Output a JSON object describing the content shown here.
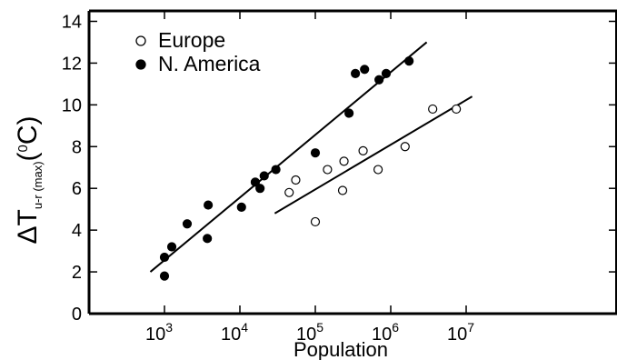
{
  "chart_data": {
    "type": "scatter",
    "xlabel": "Population",
    "ylabel": {
      "delta": "Δ",
      "T": "T",
      "subscript": "u-r (max)",
      "open_paren": "(",
      "unit_sup": "0",
      "unit": "C)"
    },
    "x_scale": "log",
    "xlim": [
      100,
      1000000000
    ],
    "ylim": [
      0,
      14.5
    ],
    "x_ticks": [
      {
        "value": 1000,
        "base": "10",
        "exp": "3"
      },
      {
        "value": 10000,
        "base": "10",
        "exp": "4"
      },
      {
        "value": 100000,
        "base": "10",
        "exp": "5"
      },
      {
        "value": 1000000,
        "base": "10",
        "exp": "6"
      },
      {
        "value": 10000000,
        "base": "10",
        "exp": "7"
      }
    ],
    "y_ticks": [
      "0",
      "2",
      "4",
      "6",
      "8",
      "10",
      "12",
      "14"
    ],
    "legend": {
      "placement": "top-left"
    },
    "grid": false,
    "series": [
      {
        "name": "N. America",
        "marker": "filled-circle",
        "points": [
          {
            "x": 1000,
            "y": 1.8
          },
          {
            "x": 1000,
            "y": 2.7
          },
          {
            "x": 1250,
            "y": 3.2
          },
          {
            "x": 2000,
            "y": 4.3
          },
          {
            "x": 3700,
            "y": 3.6
          },
          {
            "x": 3800,
            "y": 5.2
          },
          {
            "x": 10500,
            "y": 5.1
          },
          {
            "x": 16000,
            "y": 6.3
          },
          {
            "x": 18500,
            "y": 6.0
          },
          {
            "x": 21000,
            "y": 6.6
          },
          {
            "x": 30000,
            "y": 6.9
          },
          {
            "x": 100000,
            "y": 7.7
          },
          {
            "x": 280000,
            "y": 9.6
          },
          {
            "x": 340000,
            "y": 11.5
          },
          {
            "x": 450000,
            "y": 11.7
          },
          {
            "x": 700000,
            "y": 11.2
          },
          {
            "x": 870000,
            "y": 11.5
          },
          {
            "x": 1750000,
            "y": 12.1
          }
        ],
        "trend": [
          {
            "x": 650,
            "y": 2.0
          },
          {
            "x": 3000000,
            "y": 13.0
          }
        ]
      },
      {
        "name": "Europe",
        "marker": "open-circle",
        "points": [
          {
            "x": 45000,
            "y": 5.8
          },
          {
            "x": 55000,
            "y": 6.4
          },
          {
            "x": 100000,
            "y": 4.4
          },
          {
            "x": 145000,
            "y": 6.9
          },
          {
            "x": 230000,
            "y": 5.9
          },
          {
            "x": 240000,
            "y": 7.3
          },
          {
            "x": 430000,
            "y": 7.8
          },
          {
            "x": 680000,
            "y": 6.9
          },
          {
            "x": 1550000,
            "y": 8.0
          },
          {
            "x": 3600000,
            "y": 9.8
          },
          {
            "x": 7400000,
            "y": 9.8
          }
        ],
        "trend": [
          {
            "x": 29000,
            "y": 4.8
          },
          {
            "x": 12000000,
            "y": 10.4
          }
        ]
      }
    ]
  }
}
